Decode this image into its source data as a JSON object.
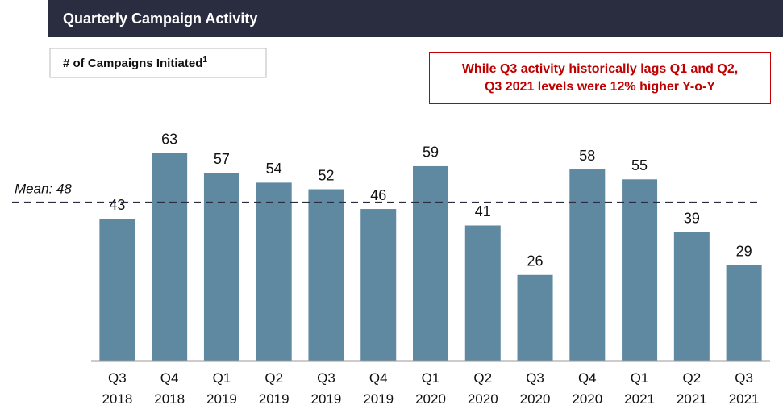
{
  "chart_data": {
    "type": "bar",
    "title": "Quarterly Campaign Activity",
    "subtitle": "# of Campaigns Initiated",
    "subtitle_footnote": "1",
    "annotation": "While Q3 activity historically lags Q1 and Q2, Q3 2021 levels were 12% higher Y-o-Y",
    "categories": [
      [
        "Q3",
        "2018"
      ],
      [
        "Q4",
        "2018"
      ],
      [
        "Q1",
        "2019"
      ],
      [
        "Q2",
        "2019"
      ],
      [
        "Q3",
        "2019"
      ],
      [
        "Q4",
        "2019"
      ],
      [
        "Q1",
        "2020"
      ],
      [
        "Q2",
        "2020"
      ],
      [
        "Q3",
        "2020"
      ],
      [
        "Q4",
        "2020"
      ],
      [
        "Q1",
        "2021"
      ],
      [
        "Q2",
        "2021"
      ],
      [
        "Q3",
        "2021"
      ]
    ],
    "values": [
      43,
      63,
      57,
      54,
      52,
      46,
      59,
      41,
      26,
      58,
      55,
      39,
      29
    ],
    "color": "#5f88a1",
    "mean": 48,
    "mean_label": "Mean: 48",
    "ylim": [
      0,
      70
    ]
  }
}
